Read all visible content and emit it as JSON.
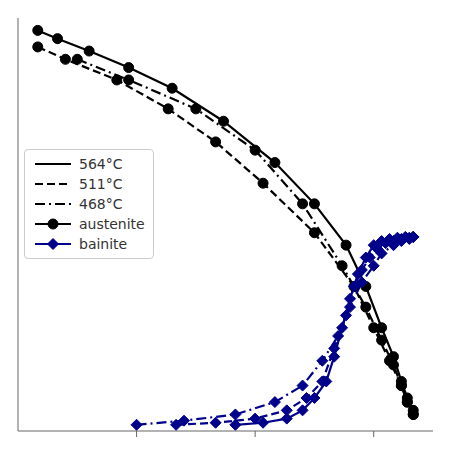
{
  "chart_data": {
    "type": "line",
    "xlim": [
      0,
      10.5
    ],
    "xticks": [
      3.0,
      6.0,
      9.0
    ],
    "ylim": [
      0,
      10.0
    ],
    "yticks": [],
    "tick_labels": false,
    "grid": false,
    "legend": "left",
    "series": [
      {
        "name": "564°C",
        "material": "austenite",
        "color": "#000000",
        "marker": "circle",
        "line_style": "solid",
        "x": [
          0.5,
          1.0,
          1.8,
          2.8,
          3.9,
          5.2,
          6.5,
          7.5,
          8.3,
          8.8,
          9.2,
          9.5,
          9.7,
          9.85,
          10.0
        ],
        "values": [
          9.7,
          9.5,
          9.2,
          8.8,
          8.3,
          7.5,
          6.5,
          5.5,
          4.5,
          3.5,
          2.5,
          1.8,
          1.2,
          0.8,
          0.5
        ]
      },
      {
        "name": "511°C",
        "material": "austenite",
        "color": "#000000",
        "marker": "circle",
        "line_style": "dashed",
        "x": [
          0.5,
          1.2,
          2.5,
          3.8,
          5.0,
          6.2,
          7.5,
          8.5,
          9.0,
          9.4,
          9.7,
          9.85,
          10.0
        ],
        "values": [
          9.3,
          9.0,
          8.5,
          7.8,
          7.0,
          6.0,
          4.8,
          3.5,
          2.5,
          1.7,
          1.1,
          0.7,
          0.4
        ]
      },
      {
        "name": "468°C",
        "material": "austenite",
        "color": "#000000",
        "marker": "circle",
        "line_style": "dashdot",
        "x": [
          1.5,
          2.8,
          4.5,
          6.0,
          7.2,
          8.2,
          8.8,
          9.2,
          9.5,
          9.7,
          9.85,
          10.0
        ],
        "values": [
          9.0,
          8.5,
          7.8,
          6.8,
          5.5,
          4.0,
          3.0,
          2.2,
          1.6,
          1.1,
          0.7,
          0.4
        ]
      },
      {
        "name": "564°C",
        "material": "bainite",
        "color": "#00008B",
        "marker": "diamond",
        "line_style": "solid",
        "x": [
          5.5,
          6.2,
          6.8,
          7.2,
          7.5,
          7.8,
          8.0,
          8.2,
          8.4,
          8.6,
          8.8,
          9.0,
          9.2,
          9.4,
          9.6,
          9.8,
          10.0
        ],
        "values": [
          0.15,
          0.2,
          0.3,
          0.5,
          0.8,
          1.2,
          1.8,
          2.5,
          3.2,
          3.8,
          4.2,
          4.5,
          4.6,
          4.65,
          4.68,
          4.7,
          4.7
        ]
      },
      {
        "name": "511°C",
        "material": "bainite",
        "color": "#00008B",
        "marker": "diamond",
        "line_style": "dashed",
        "x": [
          4.0,
          5.0,
          6.0,
          6.8,
          7.3,
          7.7,
          8.0,
          8.3,
          8.5,
          8.7,
          8.9,
          9.1,
          9.3,
          9.5,
          9.7,
          9.9,
          10.0
        ],
        "values": [
          0.15,
          0.2,
          0.3,
          0.5,
          0.8,
          1.2,
          2.0,
          2.8,
          3.5,
          3.9,
          4.2,
          4.4,
          4.55,
          4.6,
          4.65,
          4.68,
          4.7
        ]
      },
      {
        "name": "468°C",
        "material": "bainite",
        "color": "#00008B",
        "marker": "diamond",
        "line_style": "dashdot",
        "x": [
          3.0,
          4.2,
          5.5,
          6.5,
          7.2,
          7.7,
          8.1,
          8.4,
          8.7,
          9.0,
          9.2,
          9.5,
          9.7,
          9.9,
          10.0
        ],
        "values": [
          0.15,
          0.25,
          0.4,
          0.7,
          1.1,
          1.7,
          2.3,
          3.0,
          3.6,
          4.0,
          4.3,
          4.5,
          4.6,
          4.65,
          4.7
        ]
      }
    ]
  }
}
